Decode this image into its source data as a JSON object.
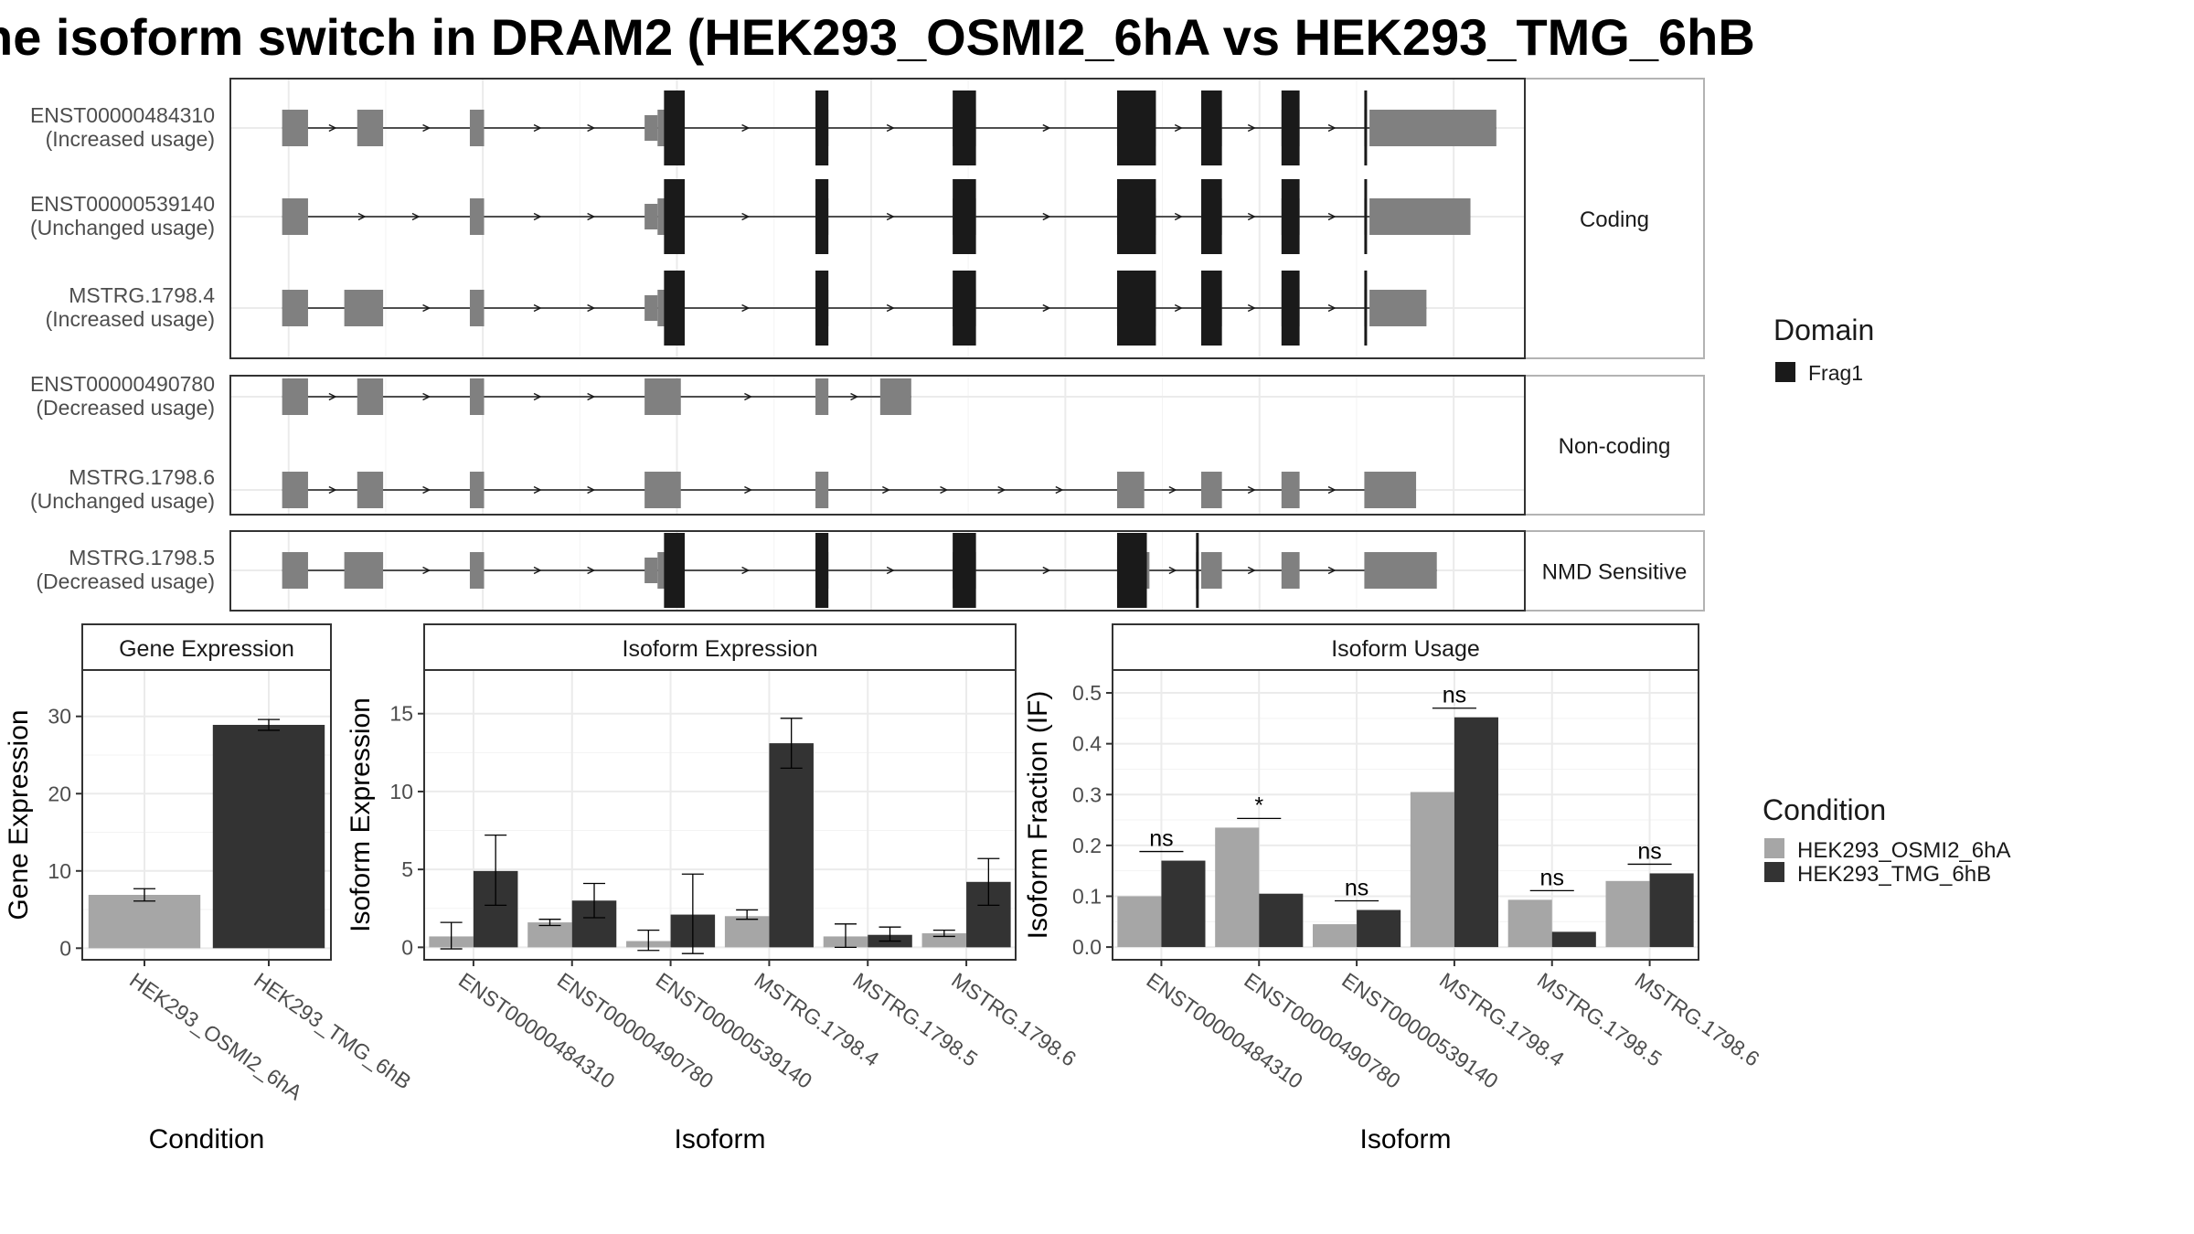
{
  "title": "he isoform switch in DRAM2 (HEK293_OSMI2_6hA vs HEK293_TMG_6hB",
  "colors": {
    "domain": "#1a1a1a",
    "exon": "#808080",
    "cond_a": "#a6a6a6",
    "cond_b": "#333333",
    "grid": "#ebebeb",
    "strip": "#ffffff"
  },
  "chart_data": [
    {
      "type": "gene-structure",
      "genome_axis": [
        0,
        100
      ],
      "strip_labels": [
        "Coding",
        "Non-coding",
        "NMD Sensitive"
      ],
      "legend": {
        "title": "Domain",
        "entries": [
          {
            "label": "Frag1"
          }
        ]
      },
      "transcripts": [
        {
          "name": "ENST00000484310",
          "usage": "(Increased usage)",
          "panel": 0,
          "exons": [
            [
              4,
              6
            ],
            [
              9.8,
              11.8
            ],
            [
              18.5,
              19.6
            ],
            [
              32,
              33
            ],
            [
              33,
              34.4
            ],
            [
              45.2,
              46.2
            ],
            [
              55.8,
              57.6
            ],
            [
              68.5,
              71.5
            ],
            [
              75,
              76.6
            ],
            [
              81.2,
              82.6
            ],
            [
              87.6,
              87.8
            ],
            [
              88,
              97.8
            ]
          ],
          "domains": [
            [
              33.5,
              35.1
            ],
            [
              45.2,
              46.2
            ],
            [
              55.8,
              57.6
            ],
            [
              68.5,
              71.5
            ],
            [
              75,
              76.6
            ],
            [
              81.2,
              82.6
            ],
            [
              87.6,
              87.8
            ]
          ]
        },
        {
          "name": "ENST00000539140",
          "usage": "(Unchanged usage)",
          "panel": 0,
          "exons": [
            [
              4,
              6
            ],
            [
              18.5,
              19.6
            ],
            [
              32,
              33
            ],
            [
              33,
              34.4
            ],
            [
              45.2,
              46.2
            ],
            [
              55.8,
              57.6
            ],
            [
              68.5,
              71.5
            ],
            [
              75,
              76.6
            ],
            [
              81.2,
              82.6
            ],
            [
              87.6,
              87.8
            ],
            [
              88,
              95.8
            ]
          ],
          "domains": [
            [
              33.5,
              35.1
            ],
            [
              45.2,
              46.2
            ],
            [
              55.8,
              57.6
            ],
            [
              68.5,
              71.5
            ],
            [
              75,
              76.6
            ],
            [
              81.2,
              82.6
            ],
            [
              87.6,
              87.8
            ]
          ]
        },
        {
          "name": "MSTRG.1798.4",
          "usage": "(Increased usage)",
          "panel": 0,
          "exons": [
            [
              4,
              6
            ],
            [
              8.8,
              11.8
            ],
            [
              18.5,
              19.6
            ],
            [
              32,
              33
            ],
            [
              33,
              34.4
            ],
            [
              45.2,
              46.2
            ],
            [
              55.8,
              57.6
            ],
            [
              68.5,
              71.5
            ],
            [
              75,
              76.6
            ],
            [
              81.2,
              82.6
            ],
            [
              87.6,
              87.8
            ],
            [
              88,
              92.4
            ]
          ],
          "domains": [
            [
              33.5,
              35.1
            ],
            [
              45.2,
              46.2
            ],
            [
              55.8,
              57.6
            ],
            [
              68.5,
              71.5
            ],
            [
              75,
              76.6
            ],
            [
              81.2,
              82.6
            ],
            [
              87.6,
              87.8
            ]
          ]
        },
        {
          "name": "ENST00000490780",
          "usage": "(Decreased usage)",
          "panel": 1,
          "exons": [
            [
              4,
              6
            ],
            [
              9.8,
              11.8
            ],
            [
              18.5,
              19.6
            ],
            [
              32,
              34.8
            ],
            [
              45.2,
              46.2
            ],
            [
              50.2,
              52.6
            ]
          ],
          "domains": []
        },
        {
          "name": "MSTRG.1798.6",
          "usage": "(Unchanged usage)",
          "panel": 1,
          "exons": [
            [
              4,
              6
            ],
            [
              9.8,
              11.8
            ],
            [
              18.5,
              19.6
            ],
            [
              32,
              34.8
            ],
            [
              45.2,
              46.2
            ],
            [
              68.5,
              70.6
            ],
            [
              75,
              76.6
            ],
            [
              81.2,
              82.6
            ],
            [
              87.6,
              91.6
            ]
          ],
          "domains": []
        },
        {
          "name": "MSTRG.1798.5",
          "usage": "(Decreased usage)",
          "panel": 2,
          "exons": [
            [
              4,
              6
            ],
            [
              8.8,
              11.8
            ],
            [
              18.5,
              19.6
            ],
            [
              32,
              33
            ],
            [
              33,
              34.4
            ],
            [
              45.2,
              46.2
            ],
            [
              55.8,
              57.6
            ],
            [
              68.5,
              71.0
            ],
            [
              74.6,
              74.8
            ],
            [
              75,
              76.6
            ],
            [
              81.2,
              82.6
            ],
            [
              87.6,
              93.2
            ]
          ],
          "domains": [
            [
              33.5,
              35.1
            ],
            [
              45.2,
              46.2
            ],
            [
              55.8,
              57.6
            ],
            [
              68.5,
              70.8
            ],
            [
              74.6,
              74.8
            ]
          ]
        }
      ]
    },
    {
      "type": "bar",
      "title": "Gene Expression",
      "xlabel": "Condition",
      "ylabel": "Gene Expression",
      "categories": [
        "HEK293_OSMI2_6hA",
        "HEK293_TMG_6hB"
      ],
      "values": [
        6.9,
        28.9
      ],
      "errors": [
        [
          6.1,
          7.7
        ],
        [
          28.2,
          29.6
        ]
      ],
      "ylim": [
        -1.5,
        36
      ],
      "yticks": [
        0,
        10,
        20,
        30
      ]
    },
    {
      "type": "bar",
      "title": "Isoform Expression",
      "xlabel": "Isoform",
      "ylabel": "Isoform Expression",
      "categories": [
        "ENST00000484310",
        "ENST00000490780",
        "ENST00000539140",
        "MSTRG.1798.4",
        "MSTRG.1798.5",
        "MSTRG.1798.6"
      ],
      "series": [
        {
          "name": "HEK293_OSMI2_6hA",
          "values": [
            0.7,
            1.6,
            0.4,
            2.0,
            0.7,
            0.9
          ],
          "errors": [
            [
              -0.1,
              1.6
            ],
            [
              1.4,
              1.8
            ],
            [
              -0.2,
              1.1
            ],
            [
              1.8,
              2.4
            ],
            [
              0.0,
              1.5
            ],
            [
              0.7,
              1.1
            ]
          ]
        },
        {
          "name": "HEK293_TMG_6hB",
          "values": [
            4.9,
            3.0,
            2.1,
            13.1,
            0.8,
            4.2
          ],
          "errors": [
            [
              2.7,
              7.2
            ],
            [
              1.9,
              4.1
            ],
            [
              -0.4,
              4.7
            ],
            [
              11.5,
              14.7
            ],
            [
              0.4,
              1.3
            ],
            [
              2.7,
              5.7
            ]
          ]
        }
      ],
      "ylim": [
        -0.8,
        17.8
      ],
      "yticks": [
        0,
        5,
        10,
        15
      ]
    },
    {
      "type": "bar",
      "title": "Isoform Usage",
      "xlabel": "Isoform",
      "ylabel": "Isoform Fraction (IF)",
      "categories": [
        "ENST00000484310",
        "ENST00000490780",
        "ENST00000539140",
        "MSTRG.1798.4",
        "MSTRG.1798.5",
        "MSTRG.1798.6"
      ],
      "series": [
        {
          "name": "HEK293_OSMI2_6hA",
          "values": [
            0.1,
            0.235,
            0.045,
            0.305,
            0.093,
            0.13
          ]
        },
        {
          "name": "HEK293_TMG_6hB",
          "values": [
            0.17,
            0.105,
            0.073,
            0.452,
            0.03,
            0.145
          ]
        }
      ],
      "annotations": [
        "ns",
        "*",
        "ns",
        "ns",
        "ns",
        "ns"
      ],
      "ylim": [
        -0.025,
        0.545
      ],
      "yticks": [
        0.0,
        0.1,
        0.2,
        0.3,
        0.4,
        0.5
      ],
      "ytick_labels": [
        "0.0",
        "0.1",
        "0.2",
        "0.3",
        "0.4",
        "0.5"
      ]
    }
  ],
  "condition_legend": {
    "title": "Condition",
    "entries": [
      "HEK293_OSMI2_6hA",
      "HEK293_TMG_6hB"
    ]
  }
}
